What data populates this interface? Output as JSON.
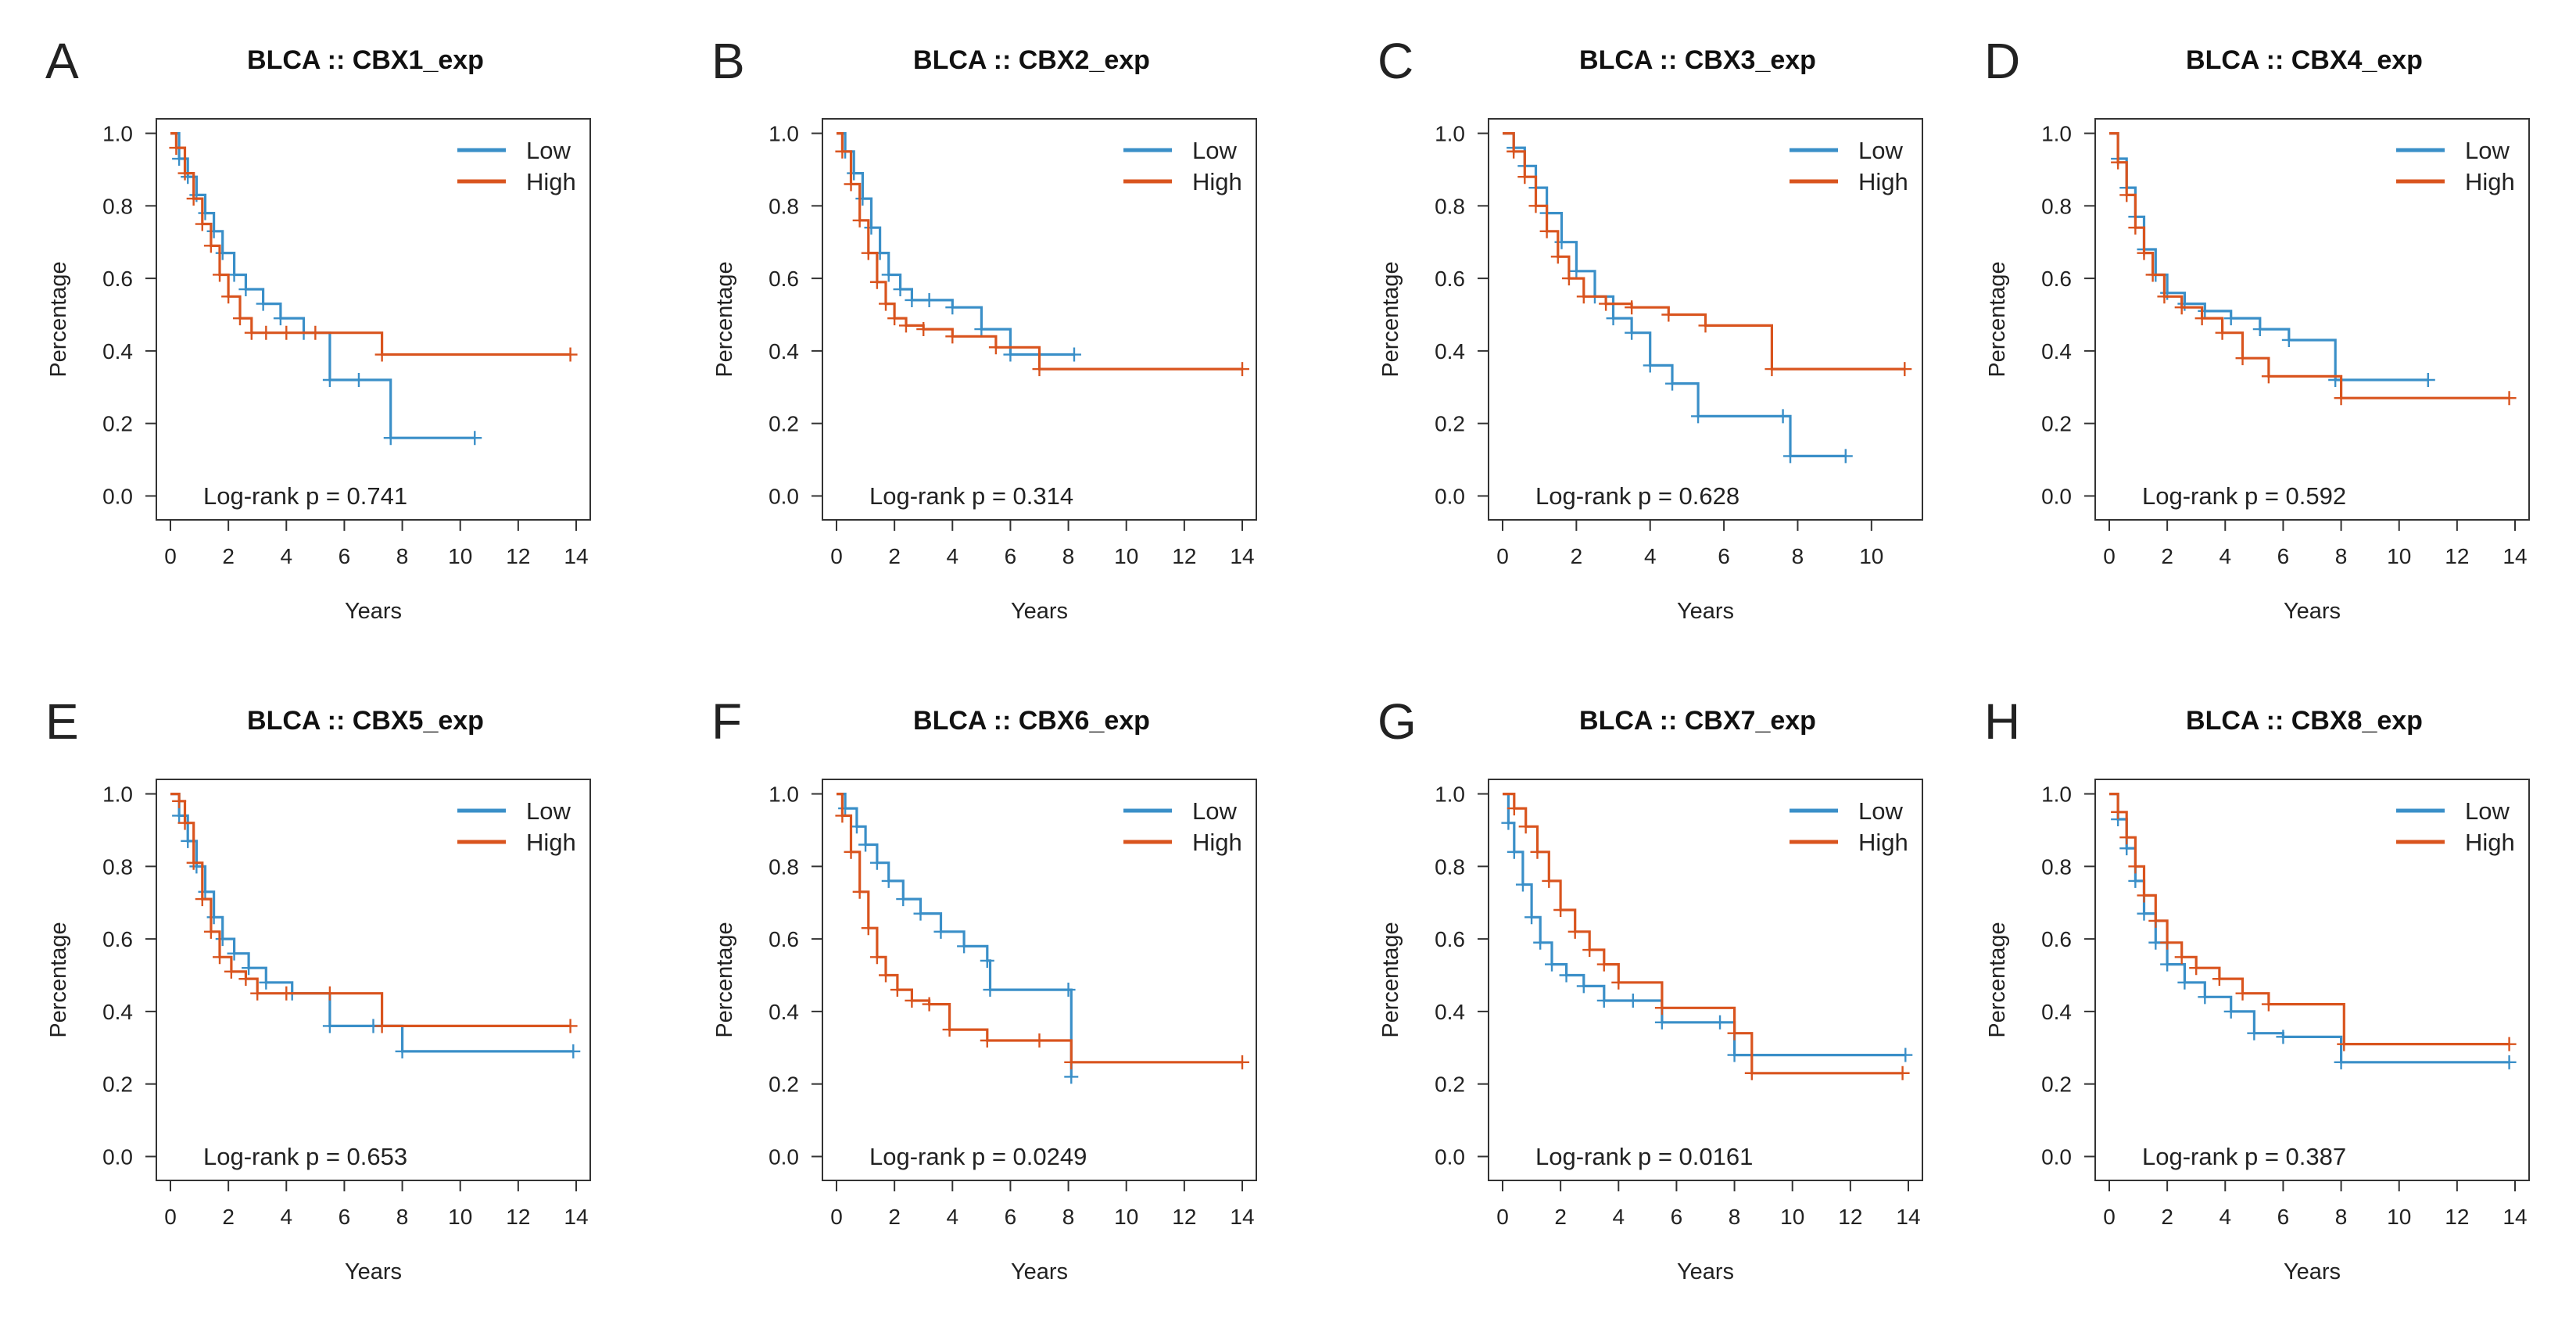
{
  "figure": {
    "colors": {
      "low": "#3a8fc8",
      "high": "#d9541e",
      "axis": "#333333"
    },
    "panels_meta": "8 Kaplan-Meier survival plots of CBX1-CBX8 expression in BLCA"
  },
  "chart_data": [
    {
      "panel": "A",
      "type": "line",
      "title": "BLCA  ::  CBX1_exp",
      "xlabel": "Years",
      "ylabel": "Percentage",
      "xticks": [
        0,
        2,
        4,
        6,
        8,
        10,
        12,
        14
      ],
      "yticks": [
        0.0,
        0.2,
        0.4,
        0.6,
        0.8,
        1.0
      ],
      "xlim": [
        0,
        14
      ],
      "ylim": [
        0,
        1.0
      ],
      "legend": [
        "Low",
        "High"
      ],
      "legend_position": "top-right",
      "annotation": "Log-rank p = 0.741",
      "series": [
        {
          "name": "Low",
          "x": [
            0,
            0.3,
            0.6,
            0.9,
            1.2,
            1.5,
            1.8,
            2.2,
            2.6,
            3.2,
            3.8,
            4.6,
            5.5,
            6.5,
            7.6,
            10.5
          ],
          "y": [
            1.0,
            0.93,
            0.88,
            0.83,
            0.78,
            0.73,
            0.67,
            0.61,
            0.57,
            0.53,
            0.49,
            0.45,
            0.32,
            0.32,
            0.16,
            0.16
          ]
        },
        {
          "name": "High",
          "x": [
            0,
            0.2,
            0.5,
            0.8,
            1.1,
            1.4,
            1.7,
            2.0,
            2.4,
            2.8,
            3.3,
            4.0,
            5.0,
            7.3,
            13.8
          ],
          "y": [
            1.0,
            0.96,
            0.89,
            0.82,
            0.75,
            0.69,
            0.61,
            0.55,
            0.49,
            0.45,
            0.45,
            0.45,
            0.45,
            0.39,
            0.39
          ]
        }
      ]
    },
    {
      "panel": "B",
      "type": "line",
      "title": "BLCA  ::  CBX2_exp",
      "xlabel": "Years",
      "ylabel": "Percentage",
      "xticks": [
        0,
        2,
        4,
        6,
        8,
        10,
        12,
        14
      ],
      "yticks": [
        0.0,
        0.2,
        0.4,
        0.6,
        0.8,
        1.0
      ],
      "xlim": [
        0,
        14
      ],
      "ylim": [
        0,
        1.0
      ],
      "legend": [
        "Low",
        "High"
      ],
      "legend_position": "top-right",
      "annotation": "Log-rank p = 0.314",
      "series": [
        {
          "name": "Low",
          "x": [
            0,
            0.3,
            0.6,
            0.9,
            1.2,
            1.5,
            1.8,
            2.2,
            2.6,
            3.2,
            4.0,
            5.0,
            6.0,
            8.2
          ],
          "y": [
            1.0,
            0.95,
            0.89,
            0.82,
            0.74,
            0.67,
            0.61,
            0.57,
            0.54,
            0.54,
            0.52,
            0.46,
            0.39,
            0.39
          ]
        },
        {
          "name": "High",
          "x": [
            0,
            0.2,
            0.5,
            0.8,
            1.1,
            1.4,
            1.7,
            2.0,
            2.4,
            3.0,
            4.0,
            5.5,
            7.0,
            14.0
          ],
          "y": [
            1.0,
            0.95,
            0.86,
            0.76,
            0.67,
            0.59,
            0.53,
            0.49,
            0.47,
            0.46,
            0.44,
            0.41,
            0.35,
            0.35
          ]
        }
      ]
    },
    {
      "panel": "C",
      "type": "line",
      "title": "BLCA  ::  CBX3_exp",
      "xlabel": "Years",
      "ylabel": "Percentage",
      "xticks": [
        0,
        2,
        4,
        6,
        8,
        10
      ],
      "yticks": [
        0.0,
        0.2,
        0.4,
        0.6,
        0.8,
        1.0
      ],
      "xlim": [
        0,
        11
      ],
      "ylim": [
        0,
        1.0
      ],
      "legend": [
        "Low",
        "High"
      ],
      "legend_position": "top-right",
      "annotation": "Log-rank p = 0.628",
      "series": [
        {
          "name": "Low",
          "x": [
            0,
            0.3,
            0.6,
            0.9,
            1.2,
            1.6,
            2.0,
            2.5,
            3.0,
            3.5,
            4.0,
            4.6,
            5.3,
            7.6,
            7.8,
            9.3
          ],
          "y": [
            1.0,
            0.96,
            0.91,
            0.85,
            0.78,
            0.7,
            0.62,
            0.55,
            0.49,
            0.45,
            0.36,
            0.31,
            0.22,
            0.22,
            0.11,
            0.11
          ]
        },
        {
          "name": "High",
          "x": [
            0,
            0.3,
            0.6,
            0.9,
            1.2,
            1.5,
            1.8,
            2.2,
            2.8,
            3.5,
            4.5,
            5.5,
            7.3,
            10.9
          ],
          "y": [
            1.0,
            0.95,
            0.88,
            0.8,
            0.73,
            0.66,
            0.6,
            0.55,
            0.53,
            0.52,
            0.5,
            0.47,
            0.35,
            0.35
          ]
        }
      ]
    },
    {
      "panel": "D",
      "type": "line",
      "title": "BLCA  ::  CBX4_exp",
      "xlabel": "Years",
      "ylabel": "Percentage",
      "xticks": [
        0,
        2,
        4,
        6,
        8,
        10,
        12,
        14
      ],
      "yticks": [
        0.0,
        0.2,
        0.4,
        0.6,
        0.8,
        1.0
      ],
      "xlim": [
        0,
        14
      ],
      "ylim": [
        0,
        1.0
      ],
      "legend": [
        "Low",
        "High"
      ],
      "legend_position": "top-right",
      "annotation": "Log-rank p = 0.592",
      "series": [
        {
          "name": "Low",
          "x": [
            0,
            0.3,
            0.6,
            0.9,
            1.2,
            1.6,
            2.0,
            2.6,
            3.3,
            4.2,
            5.2,
            6.2,
            7.8,
            11.0
          ],
          "y": [
            1.0,
            0.93,
            0.85,
            0.77,
            0.68,
            0.61,
            0.56,
            0.53,
            0.51,
            0.49,
            0.46,
            0.43,
            0.32,
            0.32
          ]
        },
        {
          "name": "High",
          "x": [
            0,
            0.3,
            0.6,
            0.9,
            1.2,
            1.5,
            1.9,
            2.5,
            3.2,
            3.9,
            4.6,
            5.5,
            8.0,
            13.8
          ],
          "y": [
            1.0,
            0.92,
            0.83,
            0.74,
            0.67,
            0.61,
            0.55,
            0.52,
            0.49,
            0.45,
            0.38,
            0.33,
            0.27,
            0.27
          ]
        }
      ]
    },
    {
      "panel": "E",
      "type": "line",
      "title": "BLCA  ::  CBX5_exp",
      "xlabel": "Years",
      "ylabel": "Percentage",
      "xticks": [
        0,
        2,
        4,
        6,
        8,
        10,
        12,
        14
      ],
      "yticks": [
        0.0,
        0.2,
        0.4,
        0.6,
        0.8,
        1.0
      ],
      "xlim": [
        0,
        14
      ],
      "ylim": [
        0,
        1.0
      ],
      "legend": [
        "Low",
        "High"
      ],
      "legend_position": "top-right",
      "annotation": "Log-rank p = 0.653",
      "series": [
        {
          "name": "Low",
          "x": [
            0,
            0.3,
            0.6,
            0.9,
            1.2,
            1.5,
            1.8,
            2.2,
            2.7,
            3.3,
            4.2,
            5.5,
            7.0,
            8.0,
            13.9
          ],
          "y": [
            1.0,
            0.94,
            0.87,
            0.8,
            0.73,
            0.66,
            0.6,
            0.56,
            0.52,
            0.48,
            0.45,
            0.36,
            0.36,
            0.29,
            0.29
          ]
        },
        {
          "name": "High",
          "x": [
            0,
            0.3,
            0.5,
            0.8,
            1.1,
            1.4,
            1.7,
            2.1,
            2.6,
            3.0,
            4.0,
            5.5,
            7.3,
            13.8
          ],
          "y": [
            1.0,
            0.98,
            0.92,
            0.81,
            0.71,
            0.62,
            0.55,
            0.51,
            0.49,
            0.45,
            0.45,
            0.45,
            0.36,
            0.36
          ]
        }
      ]
    },
    {
      "panel": "F",
      "type": "line",
      "title": "BLCA  ::  CBX6_exp",
      "xlabel": "Years",
      "ylabel": "Percentage",
      "xticks": [
        0,
        2,
        4,
        6,
        8,
        10,
        12,
        14
      ],
      "yticks": [
        0.0,
        0.2,
        0.4,
        0.6,
        0.8,
        1.0
      ],
      "xlim": [
        0,
        14
      ],
      "ylim": [
        0,
        1.0
      ],
      "legend": [
        "Low",
        "High"
      ],
      "legend_position": "top-right",
      "annotation": "Log-rank p = 0.0249",
      "series": [
        {
          "name": "Low",
          "x": [
            0,
            0.3,
            0.7,
            1.0,
            1.4,
            1.8,
            2.3,
            2.9,
            3.6,
            4.4,
            5.2,
            5.3,
            8.0,
            8.1
          ],
          "y": [
            1.0,
            0.96,
            0.91,
            0.86,
            0.81,
            0.76,
            0.71,
            0.67,
            0.62,
            0.58,
            0.54,
            0.46,
            0.46,
            0.22
          ]
        },
        {
          "name": "High",
          "x": [
            0,
            0.2,
            0.5,
            0.8,
            1.1,
            1.4,
            1.7,
            2.1,
            2.6,
            3.2,
            3.9,
            5.2,
            7.0,
            8.1,
            14.0
          ],
          "y": [
            1.0,
            0.94,
            0.84,
            0.73,
            0.63,
            0.55,
            0.5,
            0.46,
            0.43,
            0.42,
            0.35,
            0.32,
            0.32,
            0.26,
            0.26
          ]
        }
      ]
    },
    {
      "panel": "G",
      "type": "line",
      "title": "BLCA  ::  CBX7_exp",
      "xlabel": "Years",
      "ylabel": "Percentage",
      "xticks": [
        0,
        2,
        4,
        6,
        8,
        10,
        12,
        14
      ],
      "yticks": [
        0.0,
        0.2,
        0.4,
        0.6,
        0.8,
        1.0
      ],
      "xlim": [
        0,
        14
      ],
      "ylim": [
        0,
        1.0
      ],
      "legend": [
        "Low",
        "High"
      ],
      "legend_position": "top-right",
      "annotation": "Log-rank p = 0.0161",
      "series": [
        {
          "name": "Low",
          "x": [
            0,
            0.2,
            0.4,
            0.7,
            1.0,
            1.3,
            1.7,
            2.2,
            2.8,
            3.5,
            4.5,
            5.5,
            7.5,
            8.0,
            13.9
          ],
          "y": [
            1.0,
            0.92,
            0.84,
            0.75,
            0.66,
            0.59,
            0.53,
            0.5,
            0.47,
            0.43,
            0.43,
            0.37,
            0.37,
            0.28,
            0.28
          ]
        },
        {
          "name": "High",
          "x": [
            0,
            0.4,
            0.8,
            1.2,
            1.6,
            2.0,
            2.5,
            3.0,
            3.5,
            4.0,
            5.5,
            8.0,
            8.6,
            13.8
          ],
          "y": [
            1.0,
            0.96,
            0.91,
            0.84,
            0.76,
            0.68,
            0.62,
            0.57,
            0.53,
            0.48,
            0.41,
            0.34,
            0.23,
            0.23
          ]
        }
      ]
    },
    {
      "panel": "H",
      "type": "line",
      "title": "BLCA  ::  CBX8_exp",
      "xlabel": "Years",
      "ylabel": "Percentage",
      "xticks": [
        0,
        2,
        4,
        6,
        8,
        10,
        12,
        14
      ],
      "yticks": [
        0.0,
        0.2,
        0.4,
        0.6,
        0.8,
        1.0
      ],
      "xlim": [
        0,
        14
      ],
      "ylim": [
        0,
        1.0
      ],
      "legend": [
        "Low",
        "High"
      ],
      "legend_position": "top-right",
      "annotation": "Log-rank p = 0.387",
      "series": [
        {
          "name": "Low",
          "x": [
            0,
            0.3,
            0.6,
            0.9,
            1.2,
            1.6,
            2.0,
            2.6,
            3.3,
            4.2,
            5.0,
            6.0,
            8.0,
            13.8
          ],
          "y": [
            1.0,
            0.93,
            0.85,
            0.76,
            0.67,
            0.59,
            0.53,
            0.48,
            0.44,
            0.4,
            0.34,
            0.33,
            0.26,
            0.26
          ]
        },
        {
          "name": "High",
          "x": [
            0,
            0.3,
            0.6,
            0.9,
            1.2,
            1.6,
            2.0,
            2.5,
            3.0,
            3.8,
            4.6,
            5.5,
            8.1,
            13.8
          ],
          "y": [
            1.0,
            0.95,
            0.88,
            0.8,
            0.72,
            0.65,
            0.59,
            0.55,
            0.52,
            0.49,
            0.45,
            0.42,
            0.31,
            0.31
          ]
        }
      ]
    }
  ]
}
